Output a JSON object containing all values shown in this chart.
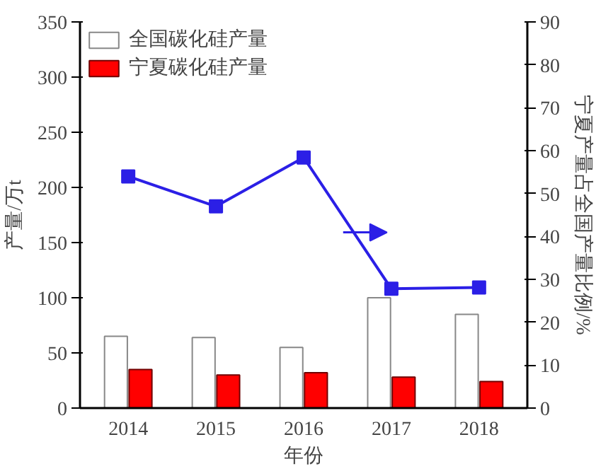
{
  "chart_data": {
    "type": "bar",
    "xlabel": "年份",
    "ylabel": "产量/万t",
    "y2label": "宁夏产量占全国产量比例/%",
    "categories": [
      "2014",
      "2015",
      "2016",
      "2017",
      "2018"
    ],
    "ylim": [
      0,
      350
    ],
    "yticks": [
      0,
      50,
      100,
      150,
      200,
      250,
      300,
      350
    ],
    "y2lim": [
      0,
      90
    ],
    "y2ticks": [
      0,
      10,
      20,
      30,
      40,
      50,
      60,
      70,
      80,
      90
    ],
    "legend": "top left",
    "grid": false,
    "marker": "square",
    "line_style": "solid",
    "series": [
      {
        "name": "全国碳化硅产量",
        "color": "#ffffff",
        "values": [
          65,
          64,
          55,
          100,
          85
        ]
      },
      {
        "name": "宁夏碳化硅产量",
        "color": "#ff0000",
        "values": [
          35,
          30,
          32,
          28,
          24
        ]
      },
      {
        "type": "line",
        "axis": "y2",
        "color": "#2b1fe6",
        "values": [
          54,
          47,
          58.4,
          27.8,
          28.1
        ]
      }
    ]
  }
}
